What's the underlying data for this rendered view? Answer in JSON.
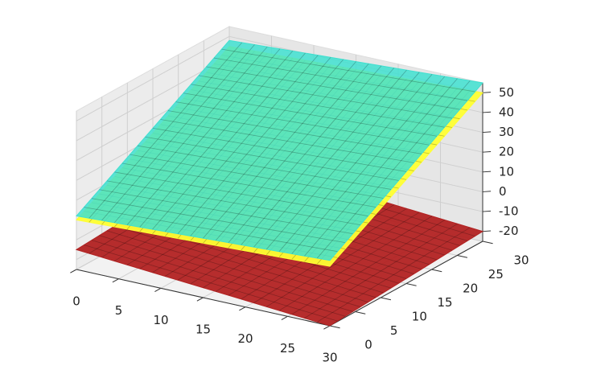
{
  "chart_data": {
    "type": "surface3d",
    "xlim": [
      0,
      30
    ],
    "ylim": [
      0,
      30
    ],
    "zlim": [
      -25,
      55
    ],
    "xticks": [
      0,
      5,
      10,
      15,
      20,
      25,
      30
    ],
    "yticks": [
      0,
      5,
      10,
      15,
      20,
      25,
      30
    ],
    "zticks": [
      -20,
      -10,
      0,
      10,
      20,
      30,
      40,
      50
    ],
    "grid": true,
    "surfaces": [
      {
        "color": "#b22222",
        "corners": [
          -15,
          -25,
          -20,
          -10
        ]
      },
      {
        "color": "#ffff33",
        "corners": [
          0,
          5,
          50,
          45
        ]
      },
      {
        "color": "#40e0d0",
        "corners": [
          2,
          8,
          55,
          48
        ]
      }
    ]
  }
}
